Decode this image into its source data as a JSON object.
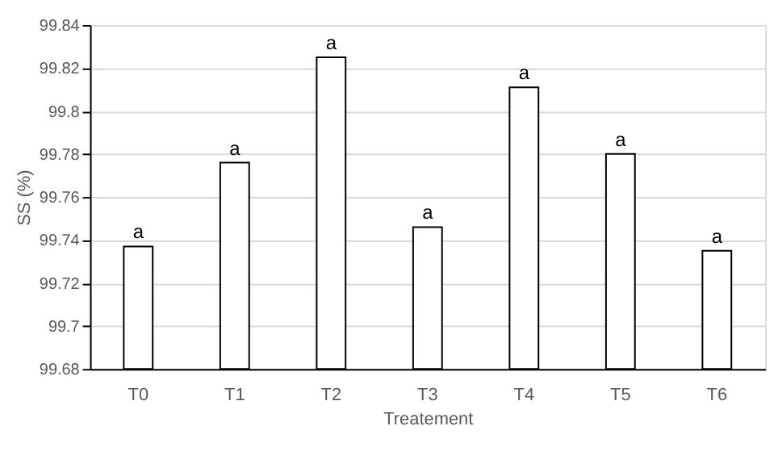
{
  "chart_data": {
    "type": "bar",
    "xlabel": "Treatement",
    "ylabel": "SS (%)",
    "categories": [
      "T0",
      "T1",
      "T2",
      "T3",
      "T4",
      "T5",
      "T6"
    ],
    "values": [
      99.737,
      99.776,
      99.825,
      99.746,
      99.811,
      99.78,
      99.735
    ],
    "value_labels": [
      "a",
      "a",
      "a",
      "a",
      "a",
      "a",
      "a"
    ],
    "color": "#ffffff",
    "ylim": [
      99.68,
      99.84
    ],
    "yticks": [
      99.68,
      99.7,
      99.72,
      99.74,
      99.76,
      99.78,
      99.8,
      99.82,
      99.84
    ],
    "grid": "y"
  }
}
